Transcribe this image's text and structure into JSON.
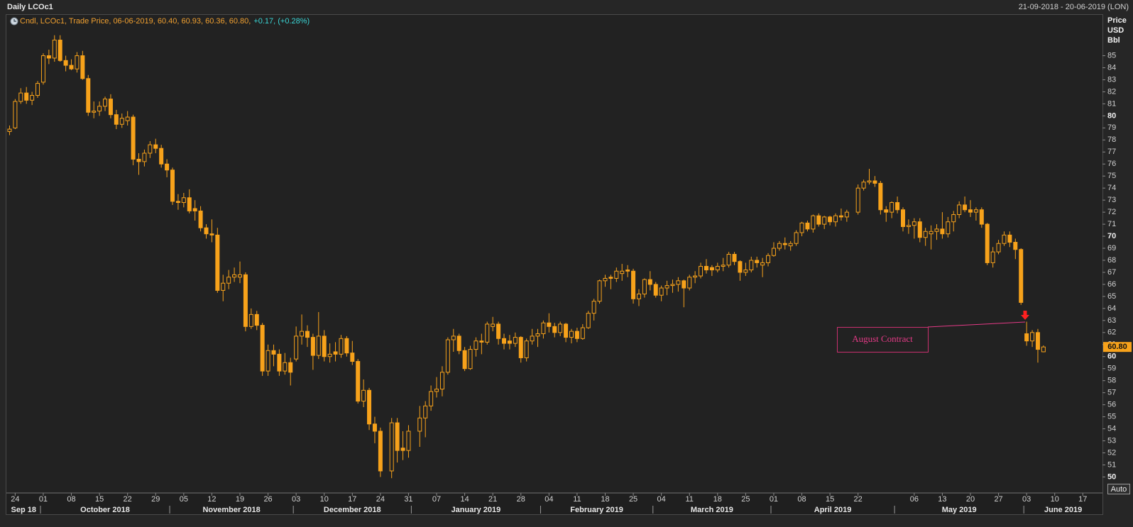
{
  "chart_data": {
    "type": "candlestick",
    "title": "Daily LCOc1",
    "date_range": "21-09-2018 - 20-06-2019 (LON)",
    "legend_text": "Cndl, LCOc1, Trade Price, 06-06-2019, 60.40, 60.93, 60.36, 60.80,",
    "legend_change": "+0.17, (+0.28%)",
    "y_axis_label": [
      "Price",
      "USD",
      "Bbl"
    ],
    "auto_button": "Auto",
    "annotation": "August Contract",
    "color": "#f7a21b",
    "last_label": "60.80",
    "ylim": [
      48.73,
      88.39
    ],
    "yticks": [
      50,
      51,
      52,
      53,
      54,
      55,
      56,
      57,
      58,
      59,
      60,
      61,
      62,
      63,
      64,
      65,
      66,
      67,
      68,
      69,
      70,
      71,
      72,
      73,
      74,
      75,
      76,
      77,
      78,
      79,
      80,
      81,
      82,
      83,
      84,
      85
    ],
    "months": [
      "Sep 18",
      "October 2018",
      "November 2018",
      "December 2018",
      "January 2019",
      "February 2019",
      "March 2019",
      "April 2019",
      "May 2019",
      "June 2019"
    ],
    "categories": [
      null,
      "24",
      null,
      null,
      null,
      null,
      "01",
      null,
      null,
      null,
      null,
      "08",
      null,
      null,
      null,
      null,
      "15",
      null,
      null,
      null,
      null,
      "22",
      null,
      null,
      null,
      null,
      "29",
      null,
      null,
      null,
      null,
      "05",
      null,
      null,
      null,
      null,
      "12",
      null,
      null,
      null,
      null,
      "19",
      null,
      null,
      null,
      null,
      "26",
      null,
      null,
      null,
      null,
      "03",
      null,
      null,
      null,
      null,
      "10",
      null,
      null,
      null,
      null,
      "17",
      null,
      null,
      null,
      null,
      "24",
      null,
      null,
      null,
      null,
      "31",
      null,
      null,
      null,
      null,
      "07",
      null,
      null,
      null,
      null,
      "14",
      null,
      null,
      null,
      null,
      "21",
      null,
      null,
      null,
      null,
      "28",
      null,
      null,
      null,
      null,
      "04",
      null,
      null,
      null,
      null,
      "11",
      null,
      null,
      null,
      null,
      "18",
      null,
      null,
      null,
      null,
      "25",
      null,
      null,
      null,
      null,
      "04",
      null,
      null,
      null,
      null,
      "11",
      null,
      null,
      null,
      null,
      "18",
      null,
      null,
      null,
      null,
      "25",
      null,
      null,
      null,
      null,
      "01",
      null,
      null,
      null,
      null,
      "08",
      null,
      null,
      null,
      null,
      "15",
      null,
      null,
      null,
      null,
      "22",
      null,
      null,
      null,
      null,
      null,
      null,
      null,
      null,
      null,
      "06",
      null,
      null,
      null,
      null,
      "13",
      null,
      null,
      null,
      null,
      "20",
      null,
      null,
      null,
      null,
      "27",
      null,
      null,
      null,
      null,
      "03",
      null,
      null,
      null,
      null,
      "10",
      null,
      null,
      null,
      null,
      "17",
      null,
      null,
      null
    ],
    "ohlc": [
      [
        78.7,
        79.2,
        78.4,
        78.9
      ],
      [
        79.0,
        81.4,
        78.9,
        81.2
      ],
      [
        81.2,
        82.3,
        81.0,
        81.9
      ],
      [
        81.9,
        82.4,
        81.0,
        81.3
      ],
      [
        81.3,
        82.0,
        80.9,
        81.7
      ],
      [
        81.7,
        82.9,
        81.5,
        82.7
      ],
      [
        82.8,
        85.2,
        82.6,
        85.0
      ],
      [
        85.0,
        85.5,
        84.3,
        84.8
      ],
      [
        84.8,
        86.7,
        84.5,
        86.3
      ],
      [
        86.3,
        86.7,
        84.5,
        84.6
      ],
      [
        84.6,
        85.0,
        83.7,
        84.2
      ],
      [
        84.2,
        84.7,
        83.8,
        83.9
      ],
      [
        83.9,
        85.3,
        83.6,
        85.0
      ],
      [
        85.0,
        85.4,
        83.0,
        83.1
      ],
      [
        83.1,
        83.4,
        80.0,
        80.3
      ],
      [
        80.3,
        81.2,
        79.8,
        80.4
      ],
      [
        80.4,
        81.2,
        80.0,
        80.8
      ],
      [
        80.8,
        81.6,
        80.4,
        81.4
      ],
      [
        81.4,
        81.8,
        79.8,
        80.1
      ],
      [
        80.1,
        80.5,
        78.9,
        79.3
      ],
      [
        79.3,
        80.2,
        79.0,
        79.8
      ],
      [
        79.6,
        80.4,
        79.2,
        79.9
      ],
      [
        79.9,
        80.1,
        75.9,
        76.4
      ],
      [
        76.4,
        76.9,
        75.1,
        76.2
      ],
      [
        76.2,
        77.2,
        75.8,
        76.9
      ],
      [
        76.9,
        77.9,
        76.5,
        77.6
      ],
      [
        77.6,
        78.1,
        76.9,
        77.3
      ],
      [
        77.3,
        77.6,
        75.7,
        76.0
      ],
      [
        76.0,
        76.4,
        74.9,
        75.5
      ],
      [
        75.5,
        75.7,
        72.6,
        72.9
      ],
      [
        72.9,
        73.5,
        72.2,
        72.8
      ],
      [
        72.8,
        73.6,
        72.4,
        73.2
      ],
      [
        73.2,
        73.9,
        71.9,
        72.1
      ],
      [
        72.3,
        73.0,
        71.3,
        72.1
      ],
      [
        72.1,
        72.5,
        70.4,
        70.7
      ],
      [
        70.7,
        71.0,
        69.8,
        70.2
      ],
      [
        70.2,
        71.4,
        69.5,
        70.1
      ],
      [
        70.1,
        70.7,
        65.3,
        65.5
      ],
      [
        65.5,
        66.8,
        64.6,
        66.1
      ],
      [
        66.1,
        67.2,
        65.6,
        66.6
      ],
      [
        66.6,
        67.4,
        66.2,
        66.8
      ],
      [
        66.6,
        67.9,
        66.1,
        66.8
      ],
      [
        66.8,
        67.0,
        62.1,
        62.5
      ],
      [
        62.5,
        64.0,
        62.3,
        63.5
      ],
      [
        63.5,
        63.8,
        62.2,
        62.6
      ],
      [
        62.6,
        62.8,
        58.4,
        58.8
      ],
      [
        58.8,
        61.0,
        58.4,
        60.5
      ],
      [
        60.5,
        61.0,
        59.2,
        60.2
      ],
      [
        60.2,
        60.6,
        58.4,
        58.8
      ],
      [
        58.8,
        60.3,
        58.5,
        59.5
      ],
      [
        59.5,
        59.9,
        57.6,
        58.7
      ],
      [
        59.8,
        62.5,
        59.6,
        61.7
      ],
      [
        61.7,
        63.5,
        61.0,
        62.1
      ],
      [
        62.1,
        62.6,
        60.8,
        61.6
      ],
      [
        61.6,
        61.9,
        58.9,
        60.1
      ],
      [
        60.1,
        63.7,
        59.8,
        61.7
      ],
      [
        61.7,
        62.2,
        59.6,
        60.0
      ],
      [
        60.0,
        61.1,
        59.5,
        60.2
      ],
      [
        60.4,
        61.2,
        59.6,
        60.2
      ],
      [
        60.2,
        61.8,
        59.9,
        61.5
      ],
      [
        61.5,
        61.7,
        60.0,
        60.3
      ],
      [
        60.3,
        61.3,
        59.3,
        59.6
      ],
      [
        59.6,
        59.8,
        56.1,
        56.3
      ],
      [
        56.3,
        58.1,
        55.8,
        57.2
      ],
      [
        57.2,
        57.4,
        53.9,
        54.4
      ],
      [
        54.4,
        55.0,
        52.8,
        53.8
      ],
      [
        53.8,
        54.1,
        50.0,
        50.5
      ],
      null,
      [
        50.5,
        54.9,
        49.9,
        54.5
      ],
      [
        54.5,
        54.9,
        51.2,
        52.2
      ],
      [
        52.4,
        53.8,
        51.4,
        52.2
      ],
      [
        52.2,
        54.3,
        51.6,
        53.8
      ],
      null,
      [
        53.8,
        55.9,
        52.5,
        54.9
      ],
      [
        54.9,
        56.3,
        53.3,
        55.9
      ],
      [
        55.9,
        57.6,
        55.5,
        57.1
      ],
      [
        57.1,
        58.3,
        56.6,
        57.3
      ],
      [
        57.3,
        59.2,
        56.7,
        58.7
      ],
      [
        58.7,
        61.6,
        58.5,
        61.4
      ],
      [
        61.4,
        62.3,
        60.4,
        61.7
      ],
      [
        61.7,
        61.9,
        60.2,
        60.5
      ],
      [
        60.5,
        60.8,
        58.8,
        59.0
      ],
      [
        59.0,
        60.9,
        58.9,
        60.6
      ],
      [
        60.6,
        61.6,
        60.0,
        61.3
      ],
      [
        61.3,
        61.9,
        60.2,
        61.2
      ],
      [
        61.2,
        62.9,
        61.0,
        62.7
      ],
      [
        62.5,
        63.3,
        62.1,
        62.7
      ],
      [
        62.7,
        62.9,
        61.0,
        61.5
      ],
      [
        61.5,
        61.9,
        60.6,
        61.1
      ],
      [
        61.3,
        61.8,
        60.6,
        61.1
      ],
      [
        61.1,
        62.0,
        60.8,
        61.6
      ],
      [
        61.6,
        61.7,
        59.5,
        59.9
      ],
      [
        59.9,
        61.5,
        59.6,
        61.3
      ],
      [
        61.3,
        62.3,
        61.0,
        61.7
      ],
      [
        61.7,
        62.3,
        60.8,
        61.9
      ],
      [
        61.9,
        63.0,
        61.5,
        62.8
      ],
      [
        62.8,
        63.6,
        62.0,
        62.5
      ],
      [
        62.5,
        62.8,
        61.6,
        62.0
      ],
      [
        62.0,
        62.9,
        61.7,
        62.7
      ],
      [
        62.7,
        62.8,
        61.2,
        61.6
      ],
      [
        61.6,
        62.3,
        61.1,
        62.1
      ],
      [
        62.1,
        62.4,
        61.2,
        61.5
      ],
      [
        61.5,
        62.7,
        61.4,
        62.4
      ],
      [
        62.4,
        63.8,
        62.3,
        63.6
      ],
      [
        63.6,
        64.8,
        63.0,
        64.6
      ],
      [
        64.6,
        66.4,
        64.4,
        66.3
      ],
      [
        66.3,
        66.8,
        65.8,
        66.5
      ],
      [
        66.6,
        66.8,
        65.6,
        66.5
      ],
      [
        66.5,
        67.4,
        66.2,
        67.1
      ],
      [
        66.9,
        67.7,
        66.3,
        67.1
      ],
      [
        67.2,
        67.6,
        66.6,
        67.1
      ],
      [
        67.1,
        67.3,
        64.4,
        64.8
      ],
      [
        64.8,
        65.6,
        64.2,
        65.2
      ],
      [
        65.2,
        66.5,
        64.9,
        66.4
      ],
      [
        66.4,
        67.1,
        65.5,
        66.0
      ],
      [
        66.0,
        66.2,
        64.9,
        65.1
      ],
      [
        65.1,
        65.9,
        64.6,
        65.7
      ],
      [
        65.7,
        66.3,
        65.1,
        65.9
      ],
      [
        65.9,
        66.4,
        65.3,
        66.0
      ],
      [
        66.0,
        66.6,
        65.4,
        66.3
      ],
      [
        66.3,
        66.4,
        64.1,
        65.7
      ],
      [
        65.7,
        66.8,
        65.5,
        66.6
      ],
      [
        66.6,
        67.1,
        66.1,
        66.7
      ],
      [
        66.7,
        67.8,
        66.5,
        67.5
      ],
      [
        67.5,
        68.1,
        66.9,
        67.2
      ],
      [
        67.4,
        67.6,
        66.7,
        67.2
      ],
      [
        67.2,
        67.8,
        67.0,
        67.5
      ],
      [
        67.5,
        68.2,
        67.1,
        67.6
      ],
      [
        67.6,
        68.7,
        67.4,
        68.5
      ],
      [
        68.5,
        68.7,
        67.6,
        67.9
      ],
      [
        67.9,
        68.0,
        66.3,
        67.0
      ],
      [
        67.0,
        67.8,
        66.7,
        67.2
      ],
      [
        67.2,
        68.3,
        67.0,
        68.0
      ],
      [
        68.0,
        68.3,
        67.4,
        67.8
      ],
      [
        67.6,
        68.2,
        66.6,
        67.8
      ],
      [
        67.8,
        68.6,
        67.5,
        68.4
      ],
      [
        68.4,
        69.5,
        68.3,
        69.0
      ],
      [
        69.0,
        69.6,
        68.8,
        69.4
      ],
      [
        69.4,
        69.9,
        68.9,
        69.3
      ],
      [
        69.2,
        69.6,
        68.8,
        69.4
      ],
      [
        69.4,
        70.5,
        69.2,
        70.3
      ],
      [
        70.3,
        71.2,
        70.0,
        71.1
      ],
      [
        71.1,
        71.3,
        70.4,
        70.6
      ],
      [
        70.6,
        71.8,
        70.3,
        71.7
      ],
      [
        71.7,
        71.9,
        70.8,
        71.0
      ],
      [
        71.0,
        71.7,
        70.6,
        71.6
      ],
      [
        71.6,
        71.7,
        70.9,
        71.2
      ],
      [
        71.2,
        71.9,
        70.8,
        71.7
      ],
      [
        71.7,
        72.3,
        71.3,
        71.6
      ],
      [
        71.6,
        72.2,
        71.2,
        72.0
      ],
      null,
      [
        72.0,
        74.3,
        71.8,
        74.0
      ],
      [
        74.0,
        74.7,
        73.8,
        74.5
      ],
      [
        74.5,
        75.6,
        74.3,
        74.6
      ],
      [
        74.6,
        75.0,
        74.1,
        74.4
      ],
      [
        74.4,
        74.6,
        71.8,
        72.2
      ],
      [
        72.2,
        72.5,
        71.2,
        72.0
      ],
      [
        72.0,
        72.9,
        71.5,
        72.8
      ],
      [
        72.8,
        73.3,
        71.9,
        72.2
      ],
      [
        72.2,
        72.4,
        70.4,
        70.8
      ],
      [
        70.8,
        71.4,
        70.2,
        70.9
      ],
      [
        70.9,
        71.5,
        69.8,
        71.2
      ],
      [
        71.2,
        71.5,
        69.5,
        69.9
      ],
      [
        69.9,
        70.7,
        69.2,
        70.4
      ],
      [
        70.2,
        70.9,
        68.9,
        70.4
      ],
      [
        70.4,
        71.0,
        69.7,
        70.6
      ],
      [
        70.6,
        72.0,
        69.8,
        70.2
      ],
      [
        70.2,
        71.6,
        69.9,
        71.2
      ],
      [
        71.2,
        72.1,
        70.4,
        71.8
      ],
      [
        71.8,
        72.9,
        71.5,
        72.6
      ],
      [
        72.6,
        73.3,
        72.0,
        72.2
      ],
      [
        72.2,
        73.0,
        71.6,
        72.0
      ],
      [
        72.0,
        72.4,
        71.3,
        72.2
      ],
      [
        72.2,
        72.4,
        70.7,
        71.0
      ],
      [
        71.0,
        71.1,
        67.6,
        67.8
      ],
      [
        67.8,
        69.1,
        67.4,
        68.7
      ],
      [
        68.7,
        69.7,
        68.5,
        69.4
      ],
      [
        69.4,
        70.4,
        69.2,
        70.1
      ],
      [
        70.1,
        70.4,
        69.1,
        69.5
      ],
      [
        69.5,
        69.8,
        68.1,
        68.9
      ],
      [
        68.9,
        69.0,
        64.3,
        64.5
      ],
      [
        61.9,
        62.9,
        60.9,
        61.3
      ],
      [
        61.3,
        62.2,
        60.8,
        62.0
      ],
      [
        62.0,
        62.3,
        59.5,
        60.6
      ],
      [
        60.4,
        60.93,
        60.36,
        60.8
      ],
      null,
      null,
      null,
      null,
      null,
      null,
      null,
      null,
      null,
      null
    ]
  }
}
